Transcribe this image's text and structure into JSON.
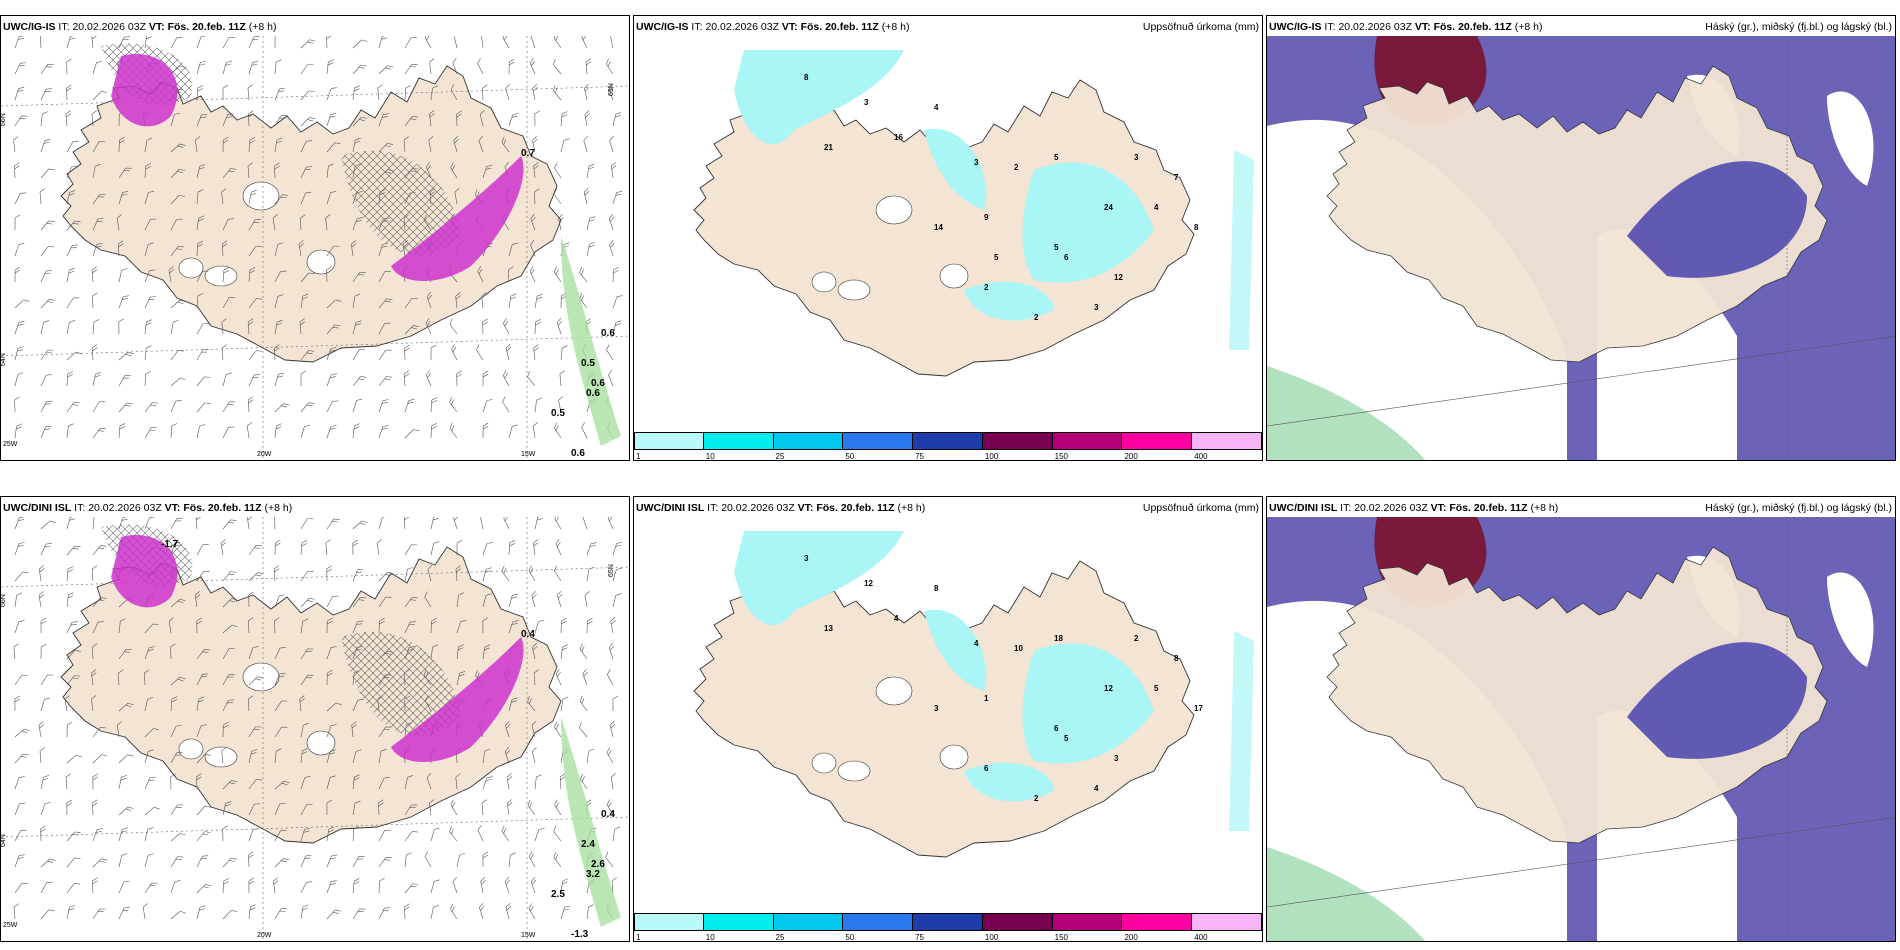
{
  "panels": [
    {
      "id": "ig-wind",
      "model": "UWC/IG-IS",
      "it_label": "IT:",
      "it": "20.02.2026 03Z",
      "vt_label": "VT:",
      "vt": "Fös. 20.feb. 11Z",
      "lead": "(+8 h)",
      "right": "",
      "lat_labels": [
        "66N",
        "64N",
        "65N"
      ],
      "lon_labels": [
        "20W",
        "15W",
        "25W"
      ],
      "values": [
        "0.7",
        "0.6",
        "0.5",
        "0.6",
        "0.6",
        "0.5",
        "0.6"
      ]
    },
    {
      "id": "ig-precip",
      "model": "UWC/IG-IS",
      "it_label": "IT:",
      "it": "20.02.2026 03Z",
      "vt_label": "VT:",
      "vt": "Fös. 20.feb. 11Z",
      "lead": "(+8 h)",
      "right": "Uppsöfnuð úrkoma (mm)",
      "values": [
        "8",
        "3",
        "4",
        "21",
        "16",
        "3",
        "2",
        "5",
        "3",
        "7",
        "4",
        "8",
        "24",
        "5",
        "9",
        "14",
        "12",
        "3",
        "2",
        "2",
        "6",
        "5"
      ]
    },
    {
      "id": "ig-cloud",
      "model": "UWC/IG-IS",
      "it_label": "IT:",
      "it": "20.02.2026 03Z",
      "vt_label": "VT:",
      "vt": "Fös. 20.feb. 11Z",
      "lead": "(+8 h)",
      "right": "Háský (gr.), miðský (fj.bl.) og lágský (bl.)"
    },
    {
      "id": "dini-wind",
      "model": "UWC/DINI ISL",
      "it_label": "IT:",
      "it": "20.02.2026 03Z",
      "vt_label": "VT:",
      "vt": "Fös. 20.feb. 11Z",
      "lead": "(+8 h)",
      "right": "",
      "lat_labels": [
        "66N",
        "64N",
        "65N"
      ],
      "lon_labels": [
        "20W",
        "15W",
        "25W"
      ],
      "values": [
        "0.4",
        "0.4",
        "2.4",
        "2.6",
        "3.2",
        "2.5",
        "-1.3",
        "-1.7"
      ]
    },
    {
      "id": "dini-precip",
      "model": "UWC/DINI ISL",
      "it_label": "IT:",
      "it": "20.02.2026 03Z",
      "vt_label": "VT:",
      "vt": "Fös. 20.feb. 11Z",
      "lead": "(+8 h)",
      "right": "Uppsöfnuð úrkoma (mm)",
      "values": [
        "3",
        "12",
        "8",
        "13",
        "4",
        "4",
        "10",
        "18",
        "2",
        "8",
        "5",
        "17",
        "12",
        "6",
        "1",
        "3",
        "3",
        "4",
        "2",
        "6",
        "5"
      ]
    },
    {
      "id": "dini-cloud",
      "model": "UWC/DINI ISL",
      "it_label": "IT:",
      "it": "20.02.2026 03Z",
      "vt_label": "VT:",
      "vt": "Fös. 20.feb. 11Z",
      "lead": "(+8 h)",
      "right": "Háský (gr.), miðský (fj.bl.) og lágský (bl.)"
    }
  ],
  "colorbar": {
    "ticks": [
      "1",
      "10",
      "25",
      "50",
      "75",
      "100",
      "150",
      "200",
      "400"
    ],
    "colors": [
      "#b8fafa",
      "#00eeee",
      "#00c8ee",
      "#2878ee",
      "#1e3caa",
      "#780050",
      "#b40078",
      "#ff00a0",
      "#f8b4f8"
    ]
  },
  "colors": {
    "land": "#f3e4d4",
    "precip_light": "#aaf5f5",
    "snow_magenta": "#cc33cc",
    "hatch": "#666666",
    "high_cloud": "#7a1a3a",
    "mid_cloud": "#5a52b0",
    "low_cloud": "#3a6ad0"
  }
}
